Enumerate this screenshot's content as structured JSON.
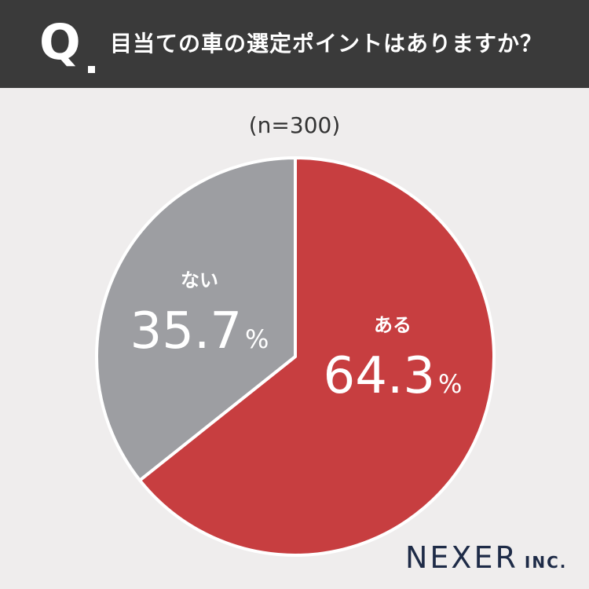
{
  "header": {
    "q_letter": "Q",
    "question": "目当ての車の選定ポイントはありますか？"
  },
  "sample_label": "(n=300)",
  "colors": {
    "header_bg": "#3a3a3a",
    "background": "#efeded",
    "slice_aru": "#c73e40",
    "slice_nai": "#9d9ea2",
    "label_text": "#ffffff",
    "brand": "#1e2b47"
  },
  "chart_data": {
    "type": "pie",
    "categories": [
      "ある",
      "ない"
    ],
    "values": [
      64.3,
      35.7
    ],
    "value_labels": [
      "64.3",
      "35.7"
    ],
    "unit": "%",
    "start": "12 o'clock, clockwise"
  },
  "brand": {
    "main": "NEXER",
    "sub": "INC."
  }
}
